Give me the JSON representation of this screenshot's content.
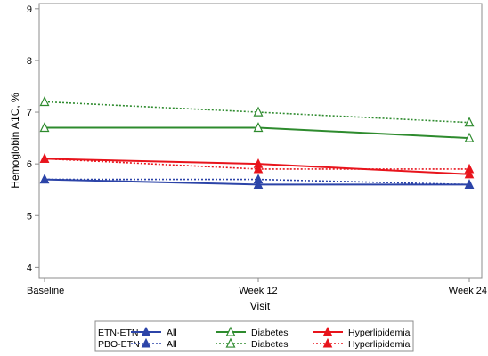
{
  "chart_data": {
    "type": "line",
    "xlabel": "Visit",
    "ylabel": "Hemoglobin A1C, %",
    "categories": [
      "Baseline",
      "Week 12",
      "Week 24"
    ],
    "ylim": [
      3.8,
      9.1
    ],
    "yticks": [
      4,
      5,
      6,
      7,
      8,
      9
    ],
    "grid": false,
    "legend_position": "bottom",
    "legend_groups": [
      "ETN-ETN",
      "PBO-ETN"
    ],
    "series": [
      {
        "name": "All",
        "group": "ETN-ETN",
        "values": [
          5.7,
          5.6,
          5.6
        ],
        "color": "#2c44a8",
        "marker": "triangle-filled",
        "dash": "solid"
      },
      {
        "name": "Diabetes",
        "group": "ETN-ETN",
        "values": [
          6.7,
          6.7,
          6.5
        ],
        "color": "#2e8b2e",
        "marker": "triangle-open",
        "dash": "solid"
      },
      {
        "name": "Hyperlipidemia",
        "group": "ETN-ETN",
        "values": [
          6.1,
          6.0,
          5.8
        ],
        "color": "#e8141c",
        "marker": "triangle-filled",
        "dash": "solid"
      },
      {
        "name": "All",
        "group": "PBO-ETN",
        "values": [
          5.7,
          5.7,
          5.6
        ],
        "color": "#2c44a8",
        "marker": "triangle-filled",
        "dash": "dotted"
      },
      {
        "name": "Diabetes",
        "group": "PBO-ETN",
        "values": [
          7.2,
          7.0,
          6.8
        ],
        "color": "#2e8b2e",
        "marker": "triangle-open",
        "dash": "dotted"
      },
      {
        "name": "Hyperlipidemia",
        "group": "PBO-ETN",
        "values": [
          6.1,
          5.9,
          5.9
        ],
        "color": "#e8141c",
        "marker": "triangle-filled",
        "dash": "dotted"
      }
    ]
  }
}
